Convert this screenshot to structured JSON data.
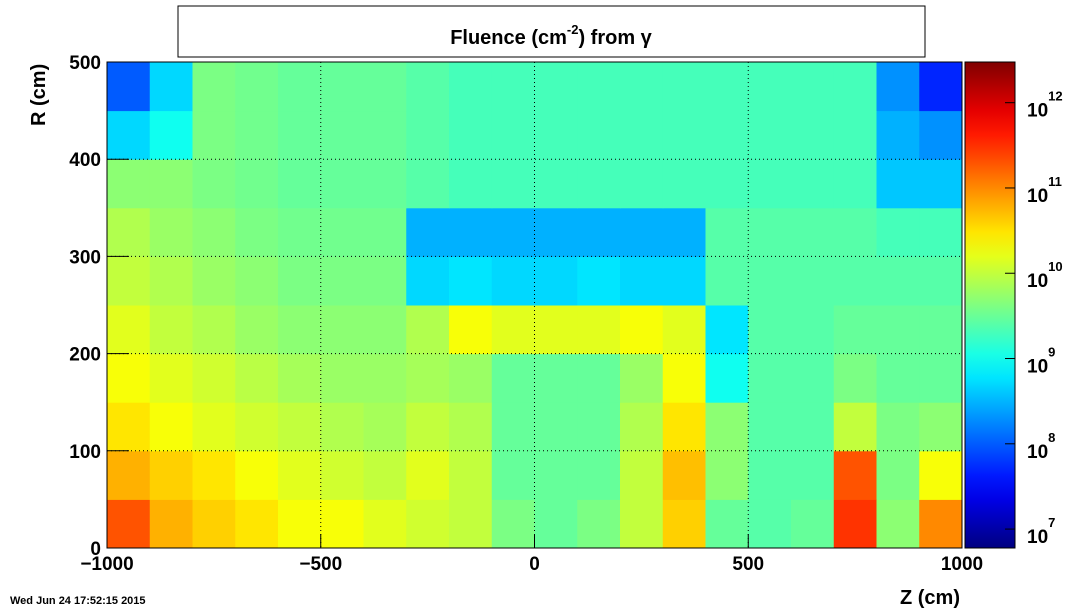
{
  "chart_data": {
    "type": "heatmap",
    "title": {
      "text": "Fluence (cm",
      "superscript": "-2",
      "suffix": ") from  γ"
    },
    "x_label": "Z (cm)",
    "y_label": "R (cm)",
    "date": "Wed Jun 24 17:52:15 2015",
    "xbins": [
      -1000,
      -900,
      -800,
      -700,
      -600,
      -500,
      -400,
      -300,
      -200,
      -100,
      0,
      100,
      200,
      300,
      400,
      500,
      600,
      700,
      800,
      900,
      1000
    ],
    "ybins": [
      0,
      50,
      100,
      150,
      200,
      250,
      300,
      350,
      400,
      450,
      500
    ],
    "values": [
      [
        200000000000.0,
        60000000000.0,
        40000000000.0,
        30000000000.0,
        20000000000.0,
        20000000000.0,
        15000000000.0,
        12000000000.0,
        10000000000.0,
        4000000000.0,
        3000000000.0,
        4000000000.0,
        10000000000.0,
        40000000000.0,
        3000000000.0,
        2500000000.0,
        3000000000.0,
        300000000000.0,
        5000000000.0,
        100000000000.0
      ],
      [
        60000000000.0,
        40000000000.0,
        30000000000.0,
        20000000000.0,
        15000000000.0,
        12000000000.0,
        10000000000.0,
        15000000000.0,
        10000000000.0,
        3000000000.0,
        3000000000.0,
        3000000000.0,
        10000000000.0,
        50000000000.0,
        5000000000.0,
        2500000000.0,
        2500000000.0,
        200000000000.0,
        4000000000.0,
        20000000000.0
      ],
      [
        30000000000.0,
        20000000000.0,
        15000000000.0,
        12000000000.0,
        10000000000.0,
        8000000000.0,
        7000000000.0,
        10000000000.0,
        8000000000.0,
        3000000000.0,
        3000000000.0,
        3000000000.0,
        8000000000.0,
        30000000000.0,
        5000000000.0,
        2500000000.0,
        2500000000.0,
        10000000000.0,
        4000000000.0,
        5000000000.0
      ],
      [
        20000000000.0,
        15000000000.0,
        12000000000.0,
        9000000000.0,
        7000000000.0,
        6000000000.0,
        6000000000.0,
        7000000000.0,
        6000000000.0,
        3000000000.0,
        3000000000.0,
        3000000000.0,
        6000000000.0,
        20000000000.0,
        1000000000.0,
        2500000000.0,
        2500000000.0,
        4000000000.0,
        3000000000.0,
        3000000000.0
      ],
      [
        15000000000.0,
        10000000000.0,
        8000000000.0,
        6000000000.0,
        5000000000.0,
        5000000000.0,
        5000000000.0,
        8000000000.0,
        20000000000.0,
        15000000000.0,
        15000000000.0,
        15000000000.0,
        20000000000.0,
        15000000000.0,
        600000000.0,
        2500000000.0,
        2500000000.0,
        3000000000.0,
        3000000000.0,
        3000000000.0
      ],
      [
        10000000000.0,
        8000000000.0,
        6000000000.0,
        5000000000.0,
        4000000000.0,
        4000000000.0,
        4000000000.0,
        500000000.0,
        600000000.0,
        500000000.0,
        500000000.0,
        600000000.0,
        500000000.0,
        500000000.0,
        2500000000.0,
        2500000000.0,
        2500000000.0,
        2500000000.0,
        2500000000.0,
        2500000000.0
      ],
      [
        8000000000.0,
        6000000000.0,
        5000000000.0,
        4000000000.0,
        3500000000.0,
        3500000000.0,
        3500000000.0,
        300000000.0,
        300000000.0,
        300000000.0,
        300000000.0,
        300000000.0,
        300000000.0,
        300000000.0,
        2500000000.0,
        2500000000.0,
        2500000000.0,
        2500000000.0,
        2000000000.0,
        2000000000.0
      ],
      [
        5000000000.0,
        5000000000.0,
        4000000000.0,
        3500000000.0,
        3000000000.0,
        3000000000.0,
        3000000000.0,
        2500000000.0,
        2000000000.0,
        2000000000.0,
        2000000000.0,
        2000000000.0,
        2000000000.0,
        2000000000.0,
        2000000000.0,
        2000000000.0,
        2000000000.0,
        2000000000.0,
        400000000.0,
        400000000.0
      ],
      [
        500000000.0,
        1000000000.0,
        4000000000.0,
        3500000000.0,
        3000000000.0,
        3000000000.0,
        3000000000.0,
        2500000000.0,
        2000000000.0,
        2000000000.0,
        2000000000.0,
        2000000000.0,
        2000000000.0,
        2000000000.0,
        2000000000.0,
        2000000000.0,
        2000000000.0,
        2000000000.0,
        300000000.0,
        200000000.0
      ],
      [
        100000000.0,
        500000000.0,
        4000000000.0,
        3500000000.0,
        3000000000.0,
        3000000000.0,
        3000000000.0,
        2500000000.0,
        2000000000.0,
        2000000000.0,
        2000000000.0,
        2000000000.0,
        2000000000.0,
        2000000000.0,
        2000000000.0,
        2000000000.0,
        2000000000.0,
        2000000000.0,
        200000000.0,
        50000000.0
      ]
    ],
    "xlim": [
      -1000,
      1000
    ],
    "ylim": [
      0,
      500
    ],
    "zlim": [
      6000000.0,
      3000000000000.0
    ],
    "zlog": true,
    "xticks": [
      {
        "value": -1000,
        "label": "−1000"
      },
      {
        "value": -500,
        "label": "−500"
      },
      0,
      500,
      1000
    ],
    "yticks": [
      0,
      100,
      200,
      300,
      400,
      500
    ],
    "zticks": [
      {
        "value": 10000000.0,
        "label": "10",
        "exponent": "7"
      },
      {
        "value": 100000000.0,
        "label": "10",
        "exponent": "8"
      },
      {
        "value": 1000000000.0,
        "label": "10",
        "exponent": "9"
      },
      {
        "value": 10000000000.0,
        "label": "10",
        "exponent": "10"
      },
      {
        "value": 100000000000.0,
        "label": "10",
        "exponent": "11"
      },
      {
        "value": 1000000000000.0,
        "label": "10",
        "exponent": "12"
      }
    ],
    "grid": true,
    "colormap": "jet"
  }
}
